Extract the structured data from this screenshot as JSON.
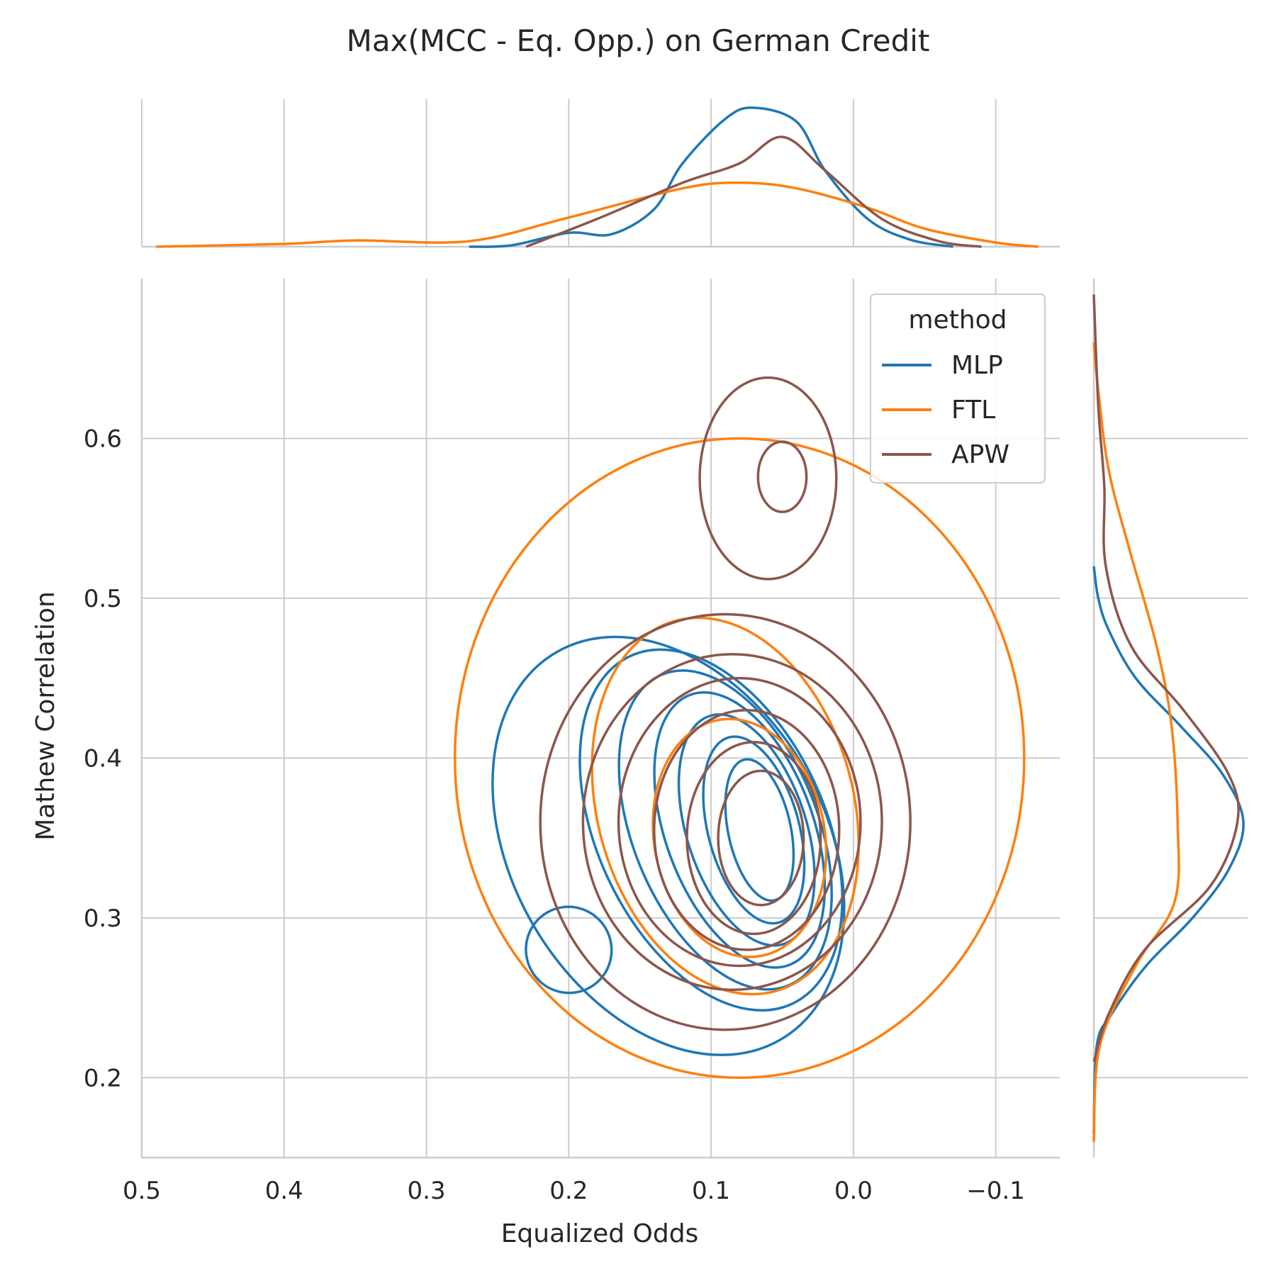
{
  "chart_data": {
    "type": "kde-joint",
    "title": "Max(MCC - Eq. Opp.) on German Credit",
    "xlabel": "Equalized Odds",
    "ylabel": "Mathew Correlation",
    "xlim": [
      0.5,
      -0.145
    ],
    "ylim": [
      0.15,
      0.7
    ],
    "x_reversed": true,
    "grid": true,
    "x_ticks": [
      0.5,
      0.4,
      0.3,
      0.2,
      0.1,
      0.0,
      -0.1
    ],
    "x_tick_labels": [
      "0.5",
      "0.4",
      "0.3",
      "0.2",
      "0.1",
      "0.0",
      "−0.1"
    ],
    "y_ticks": [
      0.2,
      0.3,
      0.4,
      0.5,
      0.6
    ],
    "y_tick_labels": [
      "0.2",
      "0.3",
      "0.4",
      "0.5",
      "0.6"
    ],
    "legend": {
      "title": "method",
      "placement": "top-right"
    },
    "series": [
      {
        "name": "MLP",
        "color": "#1f77b4",
        "marginal_x": [
          [
            0.27,
            0
          ],
          [
            0.24,
            0.01
          ],
          [
            0.2,
            0.1
          ],
          [
            0.17,
            0.09
          ],
          [
            0.14,
            0.27
          ],
          [
            0.12,
            0.6
          ],
          [
            0.09,
            0.92
          ],
          [
            0.07,
            1.0
          ],
          [
            0.04,
            0.9
          ],
          [
            0.02,
            0.55
          ],
          [
            -0.01,
            0.2
          ],
          [
            -0.04,
            0.05
          ],
          [
            -0.07,
            0
          ]
        ],
        "marginal_y": [
          [
            0.165,
            0
          ],
          [
            0.22,
            0.02
          ],
          [
            0.24,
            0.12
          ],
          [
            0.27,
            0.35
          ],
          [
            0.3,
            0.66
          ],
          [
            0.33,
            0.9
          ],
          [
            0.36,
            1.0
          ],
          [
            0.39,
            0.86
          ],
          [
            0.42,
            0.58
          ],
          [
            0.45,
            0.28
          ],
          [
            0.48,
            0.1
          ],
          [
            0.5,
            0.03
          ],
          [
            0.52,
            0
          ]
        ],
        "contours": [
          {
            "cx": 0.13,
            "cy": 0.345,
            "rx": 0.11,
            "ry": 0.14,
            "rot": -30
          },
          {
            "cx": 0.1,
            "cy": 0.355,
            "rx": 0.08,
            "ry": 0.12,
            "rot": -25
          },
          {
            "cx": 0.09,
            "cy": 0.355,
            "rx": 0.065,
            "ry": 0.105,
            "rot": -22
          },
          {
            "cx": 0.08,
            "cy": 0.355,
            "rx": 0.052,
            "ry": 0.09,
            "rot": -20
          },
          {
            "cx": 0.075,
            "cy": 0.355,
            "rx": 0.042,
            "ry": 0.075,
            "rot": -18
          },
          {
            "cx": 0.07,
            "cy": 0.355,
            "rx": 0.032,
            "ry": 0.06,
            "rot": -15
          },
          {
            "cx": 0.066,
            "cy": 0.355,
            "rx": 0.022,
            "ry": 0.045,
            "rot": -12
          },
          {
            "cx": 0.2,
            "cy": 0.28,
            "rx": 0.03,
            "ry": 0.027,
            "rot": -30
          }
        ]
      },
      {
        "name": "FTL",
        "color": "#ff7f0e",
        "marginal_x": [
          [
            0.49,
            0
          ],
          [
            0.4,
            0.02
          ],
          [
            0.35,
            0.045
          ],
          [
            0.27,
            0.04
          ],
          [
            0.2,
            0.21
          ],
          [
            0.12,
            0.42
          ],
          [
            0.08,
            0.46
          ],
          [
            0.04,
            0.42
          ],
          [
            -0.01,
            0.28
          ],
          [
            -0.05,
            0.13
          ],
          [
            -0.1,
            0.03
          ],
          [
            -0.13,
            0
          ]
        ],
        "marginal_y": [
          [
            0.16,
            0
          ],
          [
            0.22,
            0.04
          ],
          [
            0.27,
            0.28
          ],
          [
            0.31,
            0.54
          ],
          [
            0.36,
            0.56
          ],
          [
            0.42,
            0.52
          ],
          [
            0.47,
            0.42
          ],
          [
            0.53,
            0.24
          ],
          [
            0.58,
            0.1
          ],
          [
            0.63,
            0.03
          ],
          [
            0.66,
            0
          ]
        ],
        "contours": [
          {
            "cx": 0.08,
            "cy": 0.4,
            "rx": 0.2,
            "ry": 0.2,
            "rot": 0
          },
          {
            "cx": 0.09,
            "cy": 0.37,
            "rx": 0.09,
            "ry": 0.12,
            "rot": -15
          },
          {
            "cx": 0.08,
            "cy": 0.35,
            "rx": 0.06,
            "ry": 0.075,
            "rot": -10
          }
        ]
      },
      {
        "name": "APW",
        "color": "#8c564b",
        "marginal_x": [
          [
            0.23,
            0
          ],
          [
            0.18,
            0.2
          ],
          [
            0.12,
            0.46
          ],
          [
            0.08,
            0.6
          ],
          [
            0.05,
            0.79
          ],
          [
            0.02,
            0.55
          ],
          [
            -0.02,
            0.2
          ],
          [
            -0.06,
            0.04
          ],
          [
            -0.09,
            0
          ]
        ],
        "marginal_y": [
          [
            0.21,
            0
          ],
          [
            0.24,
            0.1
          ],
          [
            0.28,
            0.34
          ],
          [
            0.32,
            0.78
          ],
          [
            0.36,
            0.96
          ],
          [
            0.39,
            0.9
          ],
          [
            0.43,
            0.6
          ],
          [
            0.47,
            0.25
          ],
          [
            0.52,
            0.08
          ],
          [
            0.57,
            0.07
          ],
          [
            0.62,
            0.03
          ],
          [
            0.69,
            0
          ]
        ],
        "contours": [
          {
            "cx": 0.09,
            "cy": 0.36,
            "rx": 0.13,
            "ry": 0.13,
            "rot": 0
          },
          {
            "cx": 0.085,
            "cy": 0.36,
            "rx": 0.105,
            "ry": 0.105,
            "rot": 0
          },
          {
            "cx": 0.08,
            "cy": 0.36,
            "rx": 0.085,
            "ry": 0.09,
            "rot": 0
          },
          {
            "cx": 0.075,
            "cy": 0.355,
            "rx": 0.065,
            "ry": 0.075,
            "rot": 0
          },
          {
            "cx": 0.07,
            "cy": 0.35,
            "rx": 0.047,
            "ry": 0.06,
            "rot": 0
          },
          {
            "cx": 0.065,
            "cy": 0.35,
            "rx": 0.03,
            "ry": 0.042,
            "rot": 0
          },
          {
            "cx": 0.06,
            "cy": 0.575,
            "rx": 0.048,
            "ry": 0.063,
            "rot": 0
          },
          {
            "cx": 0.05,
            "cy": 0.576,
            "rx": 0.017,
            "ry": 0.022,
            "rot": 0
          }
        ]
      }
    ]
  }
}
